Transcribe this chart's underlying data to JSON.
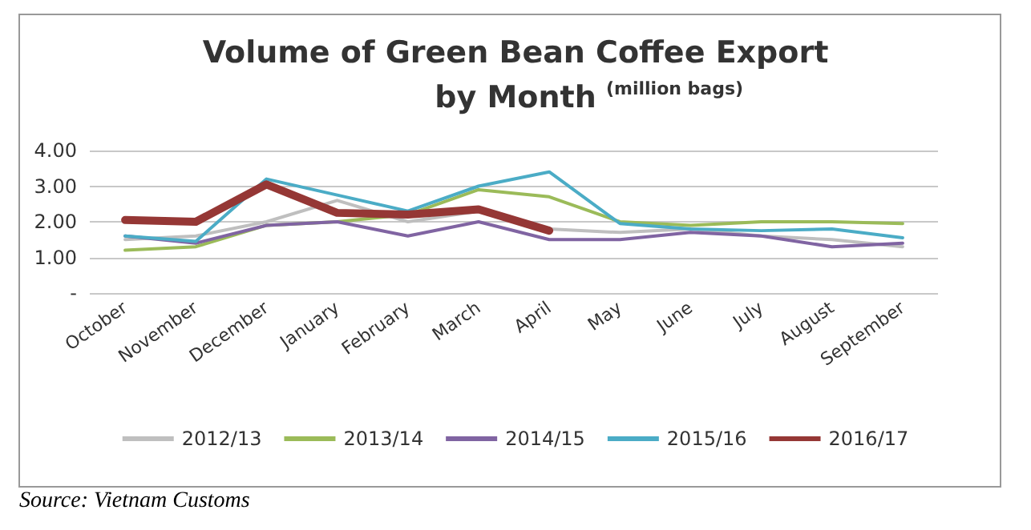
{
  "chart_data": {
    "type": "line",
    "title": "Volume of Green Bean Coffee Export\nby Month",
    "subtitle": "(million bags)",
    "categories": [
      "October",
      "November",
      "December",
      "January",
      "February",
      "March",
      "April",
      "May",
      "June",
      "July",
      "August",
      "September"
    ],
    "series": [
      {
        "name": "2012/13",
        "color": "#bfbfbf",
        "values": [
          1.5,
          1.6,
          2.0,
          2.6,
          2.0,
          2.3,
          1.8,
          1.7,
          1.8,
          1.6,
          1.5,
          1.3
        ]
      },
      {
        "name": "2013/14",
        "color": "#9bbb59",
        "values": [
          1.2,
          1.3,
          1.9,
          2.0,
          2.2,
          2.9,
          2.7,
          2.0,
          1.9,
          2.0,
          2.0,
          1.95
        ]
      },
      {
        "name": "2014/15",
        "color": "#8064a2",
        "values": [
          1.6,
          1.4,
          1.9,
          2.0,
          1.6,
          2.0,
          1.5,
          1.5,
          1.7,
          1.6,
          1.3,
          1.4
        ]
      },
      {
        "name": "2015/16",
        "color": "#4bacc6",
        "values": [
          1.6,
          1.45,
          3.2,
          2.75,
          2.3,
          3.0,
          3.4,
          1.95,
          1.8,
          1.75,
          1.8,
          1.55
        ]
      },
      {
        "name": "2016/17",
        "color": "#953735",
        "values": [
          2.05,
          2.0,
          3.05,
          2.25,
          2.2,
          2.35,
          1.75,
          null,
          null,
          null,
          null,
          null
        ]
      }
    ],
    "ylim": [
      0,
      4
    ],
    "yticks": [
      {
        "value": 0,
        "label": "-"
      },
      {
        "value": 1,
        "label": "1.00"
      },
      {
        "value": 2,
        "label": "2.00"
      },
      {
        "value": 3,
        "label": "3.00"
      },
      {
        "value": 4,
        "label": "4.00"
      }
    ],
    "grid": "y",
    "legend": "bottom",
    "marker": "none",
    "line_style": "solid",
    "annotations": [
      "Source: Vietnam Customs"
    ]
  }
}
